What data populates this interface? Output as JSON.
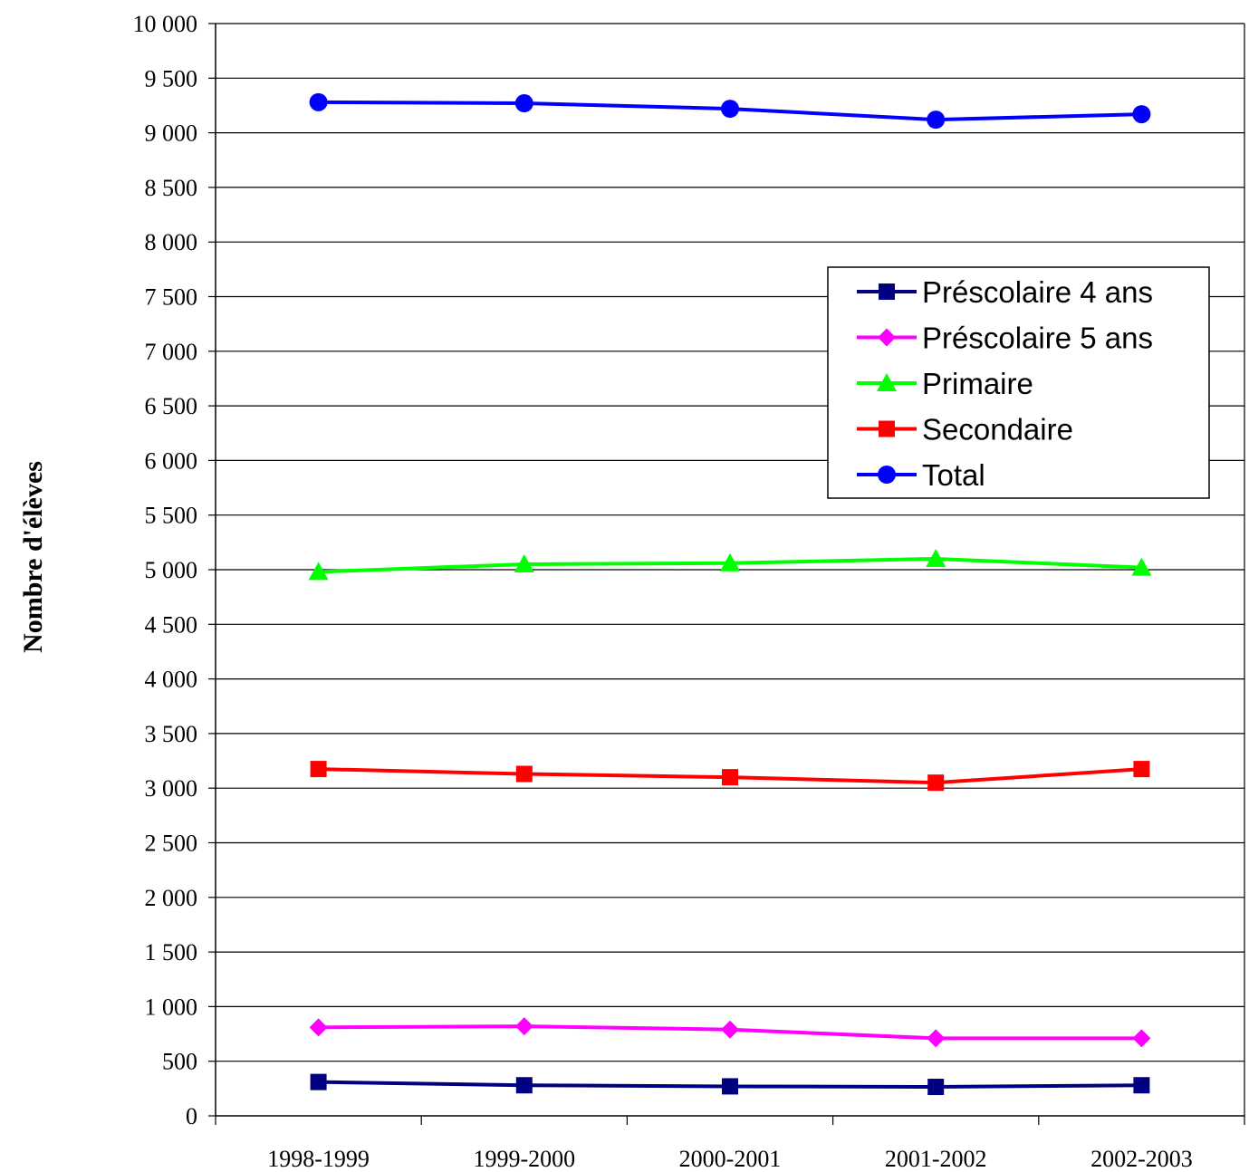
{
  "chart_data": {
    "type": "line",
    "title": "",
    "xlabel": "",
    "ylabel": "Nombre d'élèves",
    "categories": [
      "1998-1999",
      "1999-2000",
      "2000-2001",
      "2001-2002",
      "2002-2003"
    ],
    "ylim": [
      0,
      10000
    ],
    "ytick_step": 500,
    "ytick_labels": [
      "0",
      "500",
      "1 000",
      "1 500",
      "2 000",
      "2 500",
      "3 000",
      "3 500",
      "4 000",
      "4 500",
      "5 000",
      "5 500",
      "6 000",
      "6 500",
      "7 000",
      "7 500",
      "8 000",
      "8 500",
      "9 000",
      "9 500",
      "10 000"
    ],
    "grid": "horizontal",
    "legend_position": "right",
    "series": [
      {
        "name": "Préscolaire 4 ans",
        "color": "#000080",
        "marker": "square",
        "values": [
          310,
          280,
          270,
          265,
          280
        ]
      },
      {
        "name": "Préscolaire 5 ans",
        "color": "#ff00ff",
        "marker": "diamond",
        "values": [
          810,
          820,
          790,
          710,
          710
        ]
      },
      {
        "name": "Primaire",
        "color": "#00ff00",
        "marker": "triangle",
        "values": [
          4980,
          5050,
          5060,
          5100,
          5020
        ]
      },
      {
        "name": "Secondaire",
        "color": "#ff0000",
        "marker": "square",
        "values": [
          3175,
          3130,
          3100,
          3050,
          3175
        ]
      },
      {
        "name": "Total",
        "color": "#0000ff",
        "marker": "circle",
        "values": [
          9280,
          9270,
          9220,
          9120,
          9170
        ]
      }
    ]
  }
}
